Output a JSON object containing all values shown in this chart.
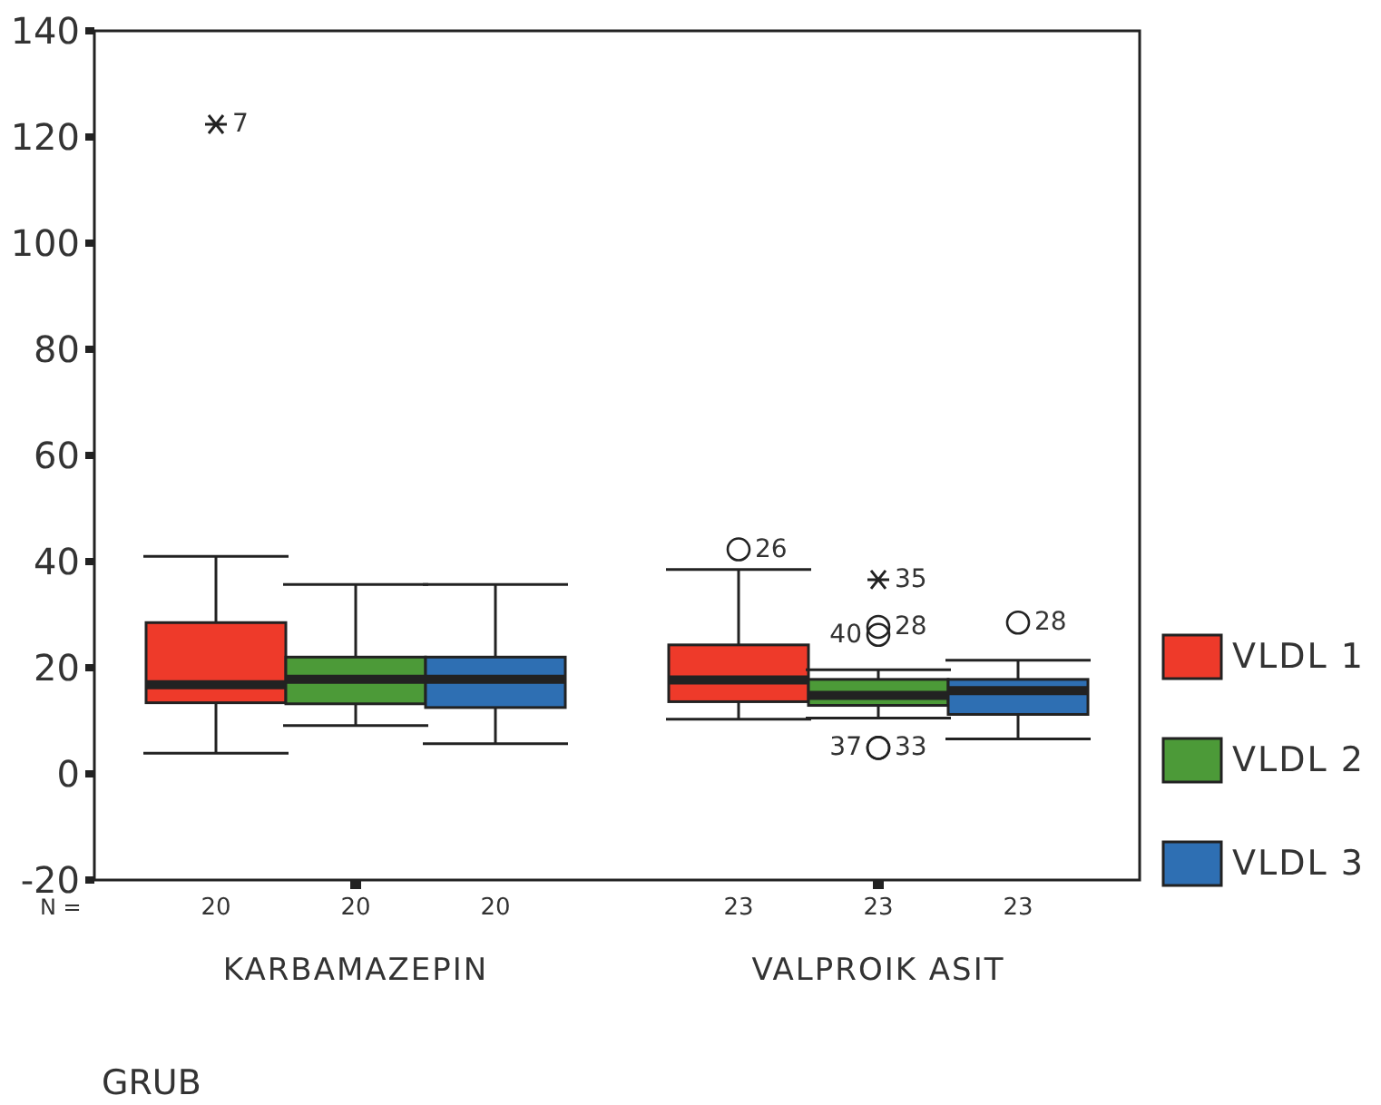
{
  "chart_data": {
    "type": "box",
    "xlabel": "GRUB",
    "categories": [
      "KARBAMAZEPIN",
      "VALPROIK ASIT"
    ],
    "series": [
      {
        "name": "VLDL 1",
        "color": "#ee3a2a",
        "boxes": [
          {
            "low": 3.9,
            "q1": 13.4,
            "median": 16.8,
            "q3": 28.5,
            "high": 41,
            "outliers": [
              122.4
            ]
          },
          {
            "low": 10.3,
            "q1": 13.6,
            "median": 17.7,
            "q3": 24.3,
            "high": 38.5,
            "outliers": [
              42.3
            ]
          }
        ]
      },
      {
        "name": "VLDL 2",
        "color": "#4c9a38",
        "boxes": [
          {
            "low": 9.1,
            "q1": 13.2,
            "median": 17.8,
            "q3": 22,
            "high": 35.7
          },
          {
            "low": 10.5,
            "q1": 12.9,
            "median": 14.8,
            "q3": 17.8,
            "high": 19.6,
            "outliers": [
              36.6,
              27.7,
              26.2,
              4.9,
              4.9
            ]
          }
        ]
      },
      {
        "name": "VLDL 3",
        "color": "#2e6fb3",
        "boxes": [
          {
            "low": 5.7,
            "q1": 12.5,
            "median": 17.8,
            "q3": 22,
            "high": 35.7
          },
          {
            "low": 6.6,
            "q1": 11.2,
            "median": 15.7,
            "q3": 17.8,
            "high": 21.4,
            "outliers": [
              28.5
            ]
          }
        ]
      }
    ],
    "annotations": [
      "7",
      "26",
      "35",
      "28",
      "40",
      "33",
      "37",
      "28",
      "N =",
      "20",
      "20",
      "20",
      "23",
      "23",
      "23"
    ],
    "ylim": [
      -20,
      140
    ],
    "yticks": [
      -20,
      0,
      20,
      40,
      60,
      80,
      100,
      120,
      140
    ],
    "legend": "right",
    "grid": false
  }
}
